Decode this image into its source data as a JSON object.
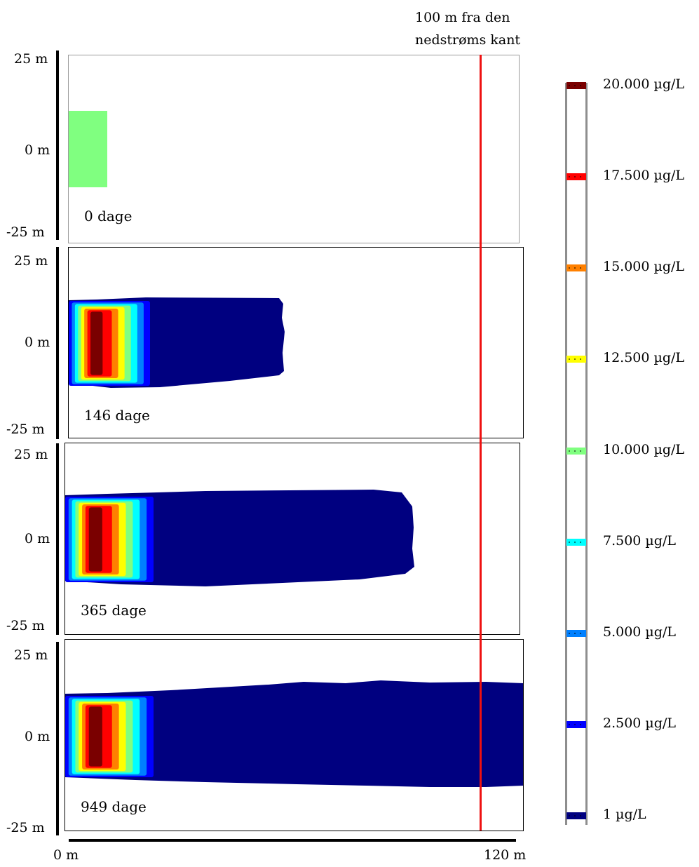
{
  "marker": {
    "line1": "100 m fra den",
    "line2": "nedstrøms kant",
    "color": "#ee1111"
  },
  "panels": [
    {
      "day_label": "0 dage",
      "y_top": "25 m",
      "y_mid": "0 m",
      "y_bot": "-25 m"
    },
    {
      "day_label": "146 dage",
      "y_top": "25 m",
      "y_mid": "0 m",
      "y_bot": "-25 m"
    },
    {
      "day_label": "365 dage",
      "y_top": "25 m",
      "y_mid": "0 m",
      "y_bot": "-25 m"
    },
    {
      "day_label": "949 dage",
      "y_top": "25 m",
      "y_mid": "0 m",
      "y_bot": "-25 m"
    }
  ],
  "x_axis": {
    "left": "0 m",
    "right": "120 m"
  },
  "legend": [
    {
      "label": "20.000 µg/L",
      "color": "#7a0000"
    },
    {
      "label": "17.500 µg/L",
      "color": "#ff0000"
    },
    {
      "label": "15.000 µg/L",
      "color": "#ff8000"
    },
    {
      "label": "12.500 µg/L",
      "color": "#ffff00"
    },
    {
      "label": "10.000 µg/L",
      "color": "#80ff80"
    },
    {
      "label": "7.500 µg/L",
      "color": "#00ffff"
    },
    {
      "label": "5.000 µg/L",
      "color": "#0080ff"
    },
    {
      "label": "2.500 µg/L",
      "color": "#0000ff"
    },
    {
      "label": "1 µg/L",
      "color": "#000080"
    }
  ],
  "source_color": "#80ff80",
  "plume_colors": [
    "#000080",
    "#0000ff",
    "#0080ff",
    "#00ffff",
    "#80ff80",
    "#ffff00",
    "#ff8000",
    "#ff0000",
    "#7a0000"
  ]
}
